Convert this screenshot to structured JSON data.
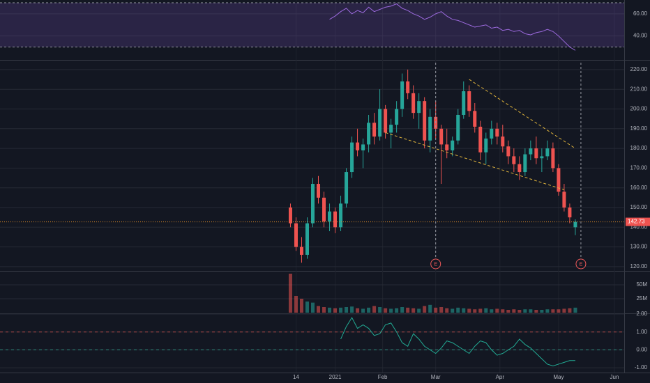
{
  "chart_data": [
    {
      "type": "line",
      "color": "#9c6ade",
      "band_color": "rgba(126,87,194,0.22)",
      "band": [
        30,
        70
      ],
      "values": [
        null,
        null,
        null,
        null,
        null,
        null,
        null,
        55,
        58,
        62,
        65,
        60,
        63,
        61,
        66,
        62,
        64,
        66,
        67,
        69,
        65,
        63,
        60,
        58,
        55,
        57,
        60,
        62,
        58,
        55,
        54,
        52,
        50,
        48,
        49,
        50,
        47,
        48,
        45,
        46,
        44,
        45,
        42,
        41,
        43,
        44,
        46,
        44,
        40,
        35,
        30,
        27
      ],
      "ylim": [
        19,
        72.5
      ],
      "yticks": [
        {
          "value": 40,
          "label": "40.00"
        },
        {
          "value": 60,
          "label": "60.00"
        }
      ]
    },
    {
      "type": "candlestick",
      "up_color": "#26a69a",
      "down_color": "#ef5350",
      "grid": true,
      "x": [
        0,
        2,
        4,
        6,
        8,
        10,
        12,
        14,
        16,
        18,
        20,
        22,
        24,
        26,
        28,
        30,
        32,
        34,
        36,
        38,
        40,
        42,
        44,
        46,
        48,
        50,
        52,
        54,
        56,
        58,
        60,
        62,
        64,
        66,
        68,
        70,
        72,
        74,
        76,
        78,
        80,
        82,
        84,
        86,
        88,
        90,
        92,
        94,
        96,
        98,
        100,
        102
      ],
      "open": [
        150,
        142,
        130,
        126,
        142,
        162,
        155,
        143,
        148,
        140,
        152,
        168,
        183,
        179,
        182,
        193,
        186,
        200,
        188,
        192,
        200,
        214,
        208,
        198,
        204,
        184,
        196,
        190,
        182,
        179,
        184,
        197,
        209,
        199,
        191,
        178,
        185,
        190,
        186,
        181,
        176,
        172,
        168,
        177,
        180,
        175,
        176,
        180,
        170,
        158,
        150,
        140
      ],
      "high": [
        152,
        145,
        135,
        145,
        165,
        166,
        158,
        152,
        150,
        156,
        170,
        186,
        190,
        185,
        197,
        198,
        210,
        202,
        195,
        204,
        218,
        220,
        212,
        208,
        206,
        200,
        204,
        192,
        190,
        186,
        200,
        214,
        212,
        203,
        194,
        188,
        194,
        193,
        192,
        184,
        180,
        176,
        180,
        184,
        186,
        180,
        184,
        183,
        172,
        162,
        152,
        144
      ],
      "low": [
        140,
        128,
        122,
        124,
        140,
        152,
        140,
        138,
        137,
        138,
        150,
        165,
        176,
        170,
        178,
        182,
        184,
        185,
        180,
        188,
        196,
        205,
        195,
        190,
        180,
        178,
        185,
        162,
        175,
        176,
        182,
        195,
        196,
        188,
        174,
        172,
        182,
        182,
        178,
        172,
        168,
        164,
        166,
        174,
        172,
        168,
        174,
        168,
        156,
        148,
        142,
        136
      ],
      "close": [
        142,
        130,
        126,
        142,
        162,
        155,
        143,
        148,
        140,
        152,
        168,
        183,
        179,
        182,
        193,
        186,
        200,
        188,
        192,
        200,
        214,
        208,
        198,
        204,
        184,
        196,
        190,
        182,
        179,
        184,
        197,
        209,
        199,
        191,
        178,
        185,
        190,
        186,
        181,
        176,
        172,
        168,
        177,
        180,
        175,
        176,
        180,
        170,
        158,
        150,
        145,
        142.73
      ],
      "price_label": 142.73,
      "trendlines": [
        {
          "x": [
            64,
            102
          ],
          "y": [
            215,
            180
          ]
        },
        {
          "x": [
            34,
            98
          ],
          "y": [
            188,
            159
          ]
        }
      ],
      "trendline_color": "#e0b43c",
      "events": [
        {
          "x": 52,
          "label": "E"
        },
        {
          "x": 104,
          "label": "E"
        }
      ],
      "event_color": "#f05a5a",
      "xlim": [
        -104,
        119.5
      ],
      "xticks": [
        {
          "value": 2,
          "label": "14"
        },
        {
          "value": 16,
          "label": "2021"
        },
        {
          "value": 33,
          "label": "Feb"
        },
        {
          "value": 52,
          "label": "Mar"
        },
        {
          "value": 75,
          "label": "Apr"
        },
        {
          "value": 96,
          "label": "May"
        },
        {
          "value": 116,
          "label": "Jun"
        }
      ],
      "ylim": [
        118.2,
        224.2
      ],
      "yticks": [
        {
          "value": 120,
          "label": "120.00"
        },
        {
          "value": 130,
          "label": "130.00"
        },
        {
          "value": 140,
          "label": "140.00"
        },
        {
          "value": 150,
          "label": "150.00"
        },
        {
          "value": 160,
          "label": "160.00"
        },
        {
          "value": 170,
          "label": "170.00"
        },
        {
          "value": 180,
          "label": "180.00"
        },
        {
          "value": 190,
          "label": "190.00"
        },
        {
          "value": 200,
          "label": "200.00"
        },
        {
          "value": 210,
          "label": "210.00"
        },
        {
          "value": 220,
          "label": "220.00"
        }
      ]
    },
    {
      "type": "bar",
      "values": [
        70000000,
        30000000,
        25000000,
        20000000,
        18000000,
        12000000,
        10000000,
        9000000,
        8000000,
        9000000,
        10000000,
        11000000,
        8000000,
        7000000,
        9000000,
        12000000,
        10000000,
        8000000,
        7000000,
        8000000,
        10000000,
        9000000,
        8000000,
        7000000,
        12000000,
        14000000,
        9000000,
        10000000,
        8000000,
        7000000,
        9000000,
        8000000,
        7000000,
        6000000,
        7000000,
        8000000,
        6000000,
        7000000,
        6000000,
        5000000,
        6000000,
        5000000,
        6000000,
        6000000,
        5000000,
        5000000,
        6000000,
        6000000,
        6000000,
        7000000,
        8000000,
        9000000
      ],
      "ylim": [
        0,
        73750000
      ],
      "yticks": [
        {
          "value": 25000000,
          "label": "25M"
        },
        {
          "value": 50000000,
          "label": "50M"
        }
      ]
    },
    {
      "type": "line",
      "color": "#22ab94",
      "levels": [
        1,
        0
      ],
      "level_colors": [
        "#b04848",
        "#2f8f80"
      ],
      "values": [
        null,
        null,
        null,
        null,
        null,
        null,
        null,
        null,
        null,
        0.6,
        1.3,
        1.8,
        1.2,
        1.4,
        1.2,
        0.8,
        0.9,
        1.4,
        1.5,
        1.0,
        0.4,
        0.2,
        0.9,
        0.6,
        0.2,
        0.0,
        -0.2,
        0.1,
        0.5,
        0.4,
        0.2,
        0.0,
        -0.2,
        0.2,
        0.5,
        0.4,
        0.0,
        -0.3,
        -0.2,
        0.0,
        0.2,
        0.6,
        0.3,
        0.1,
        -0.2,
        -0.5,
        -0.8,
        -0.9,
        -0.8,
        -0.7,
        -0.6,
        -0.6
      ],
      "ylim": [
        -1.27,
        2
      ],
      "yticks": [
        {
          "value": 2,
          "label": "2.00"
        },
        {
          "value": 1,
          "label": "1.00"
        },
        {
          "value": 0,
          "label": "0.00"
        },
        {
          "value": -1,
          "label": "-1.00"
        }
      ]
    }
  ]
}
